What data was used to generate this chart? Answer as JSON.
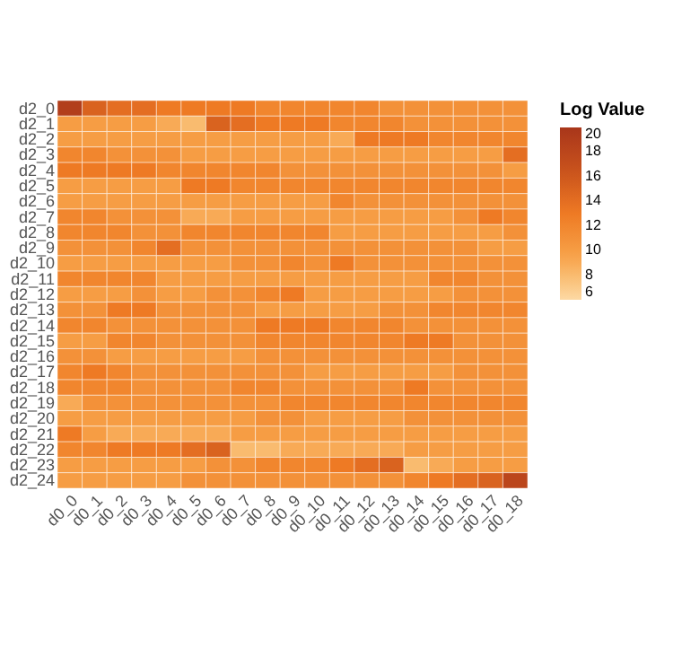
{
  "chart_data": {
    "type": "heatmap",
    "legend_title": "Log Value",
    "clim": [
      6,
      20
    ],
    "cticks": [
      6,
      8,
      10,
      12,
      14,
      16,
      18,
      20
    ],
    "categories": [
      "d0_0",
      "d0_1",
      "d0_2",
      "d0_3",
      "d0_4",
      "d0_5",
      "d0_6",
      "d0_7",
      "d0_8",
      "d0_9",
      "d0_10",
      "d0_11",
      "d0_12",
      "d0_13",
      "d0_14",
      "d0_15",
      "d0_16",
      "d0_17",
      "d0_18"
    ],
    "y_categories": [
      "d2_0",
      "d2_1",
      "d2_2",
      "d2_3",
      "d2_4",
      "d2_5",
      "d2_6",
      "d2_7",
      "d2_8",
      "d2_9",
      "d2_10",
      "d2_11",
      "d2_12",
      "d2_13",
      "d2_14",
      "d2_15",
      "d2_16",
      "d2_17",
      "d2_18",
      "d2_19",
      "d2_20",
      "d2_21",
      "d2_22",
      "d2_23",
      "d2_24"
    ],
    "cells": [
      [
        19,
        15,
        14,
        14,
        13,
        13,
        13,
        13,
        12,
        12,
        12,
        12,
        12,
        11,
        11,
        11,
        11,
        11,
        11
      ],
      [
        10,
        10,
        10,
        10,
        9,
        8,
        15,
        14,
        13,
        13,
        13,
        12,
        12,
        12,
        11,
        11,
        11,
        11,
        11
      ],
      [
        10,
        10,
        10,
        10,
        10,
        10,
        10,
        10,
        10,
        10,
        10,
        9,
        13,
        13,
        13,
        12,
        12,
        12,
        12
      ],
      [
        12,
        12,
        11,
        11,
        11,
        10,
        10,
        10,
        10,
        10,
        10,
        10,
        10,
        10,
        10,
        10,
        10,
        10,
        14
      ],
      [
        13,
        13,
        13,
        13,
        12,
        12,
        12,
        12,
        12,
        11,
        11,
        11,
        11,
        11,
        11,
        11,
        11,
        11,
        10
      ],
      [
        10,
        10,
        10,
        10,
        10,
        13,
        13,
        12,
        12,
        12,
        12,
        12,
        12,
        12,
        12,
        12,
        12,
        12,
        12
      ],
      [
        10,
        10,
        10,
        10,
        10,
        10,
        10,
        10,
        10,
        10,
        10,
        12,
        11,
        11,
        11,
        11,
        11,
        11,
        11
      ],
      [
        12,
        12,
        11,
        11,
        11,
        9,
        9,
        10,
        10,
        10,
        10,
        10,
        10,
        10,
        10,
        10,
        11,
        13,
        12
      ],
      [
        12,
        12,
        12,
        11,
        11,
        12,
        12,
        12,
        12,
        12,
        12,
        10,
        10,
        10,
        10,
        10,
        10,
        10,
        11
      ],
      [
        11,
        11,
        11,
        12,
        14,
        11,
        11,
        11,
        11,
        11,
        11,
        11,
        11,
        11,
        11,
        11,
        11,
        10,
        10
      ],
      [
        10,
        10,
        10,
        10,
        10,
        10,
        10,
        11,
        11,
        12,
        11,
        13,
        11,
        11,
        11,
        11,
        11,
        11,
        11
      ],
      [
        12,
        12,
        12,
        12,
        10,
        10,
        10,
        10,
        10,
        10,
        10,
        10,
        10,
        10,
        10,
        12,
        12,
        11,
        11
      ],
      [
        10,
        10,
        10,
        11,
        10,
        10,
        11,
        11,
        12,
        13,
        10,
        10,
        10,
        10,
        10,
        10,
        11,
        11,
        11
      ],
      [
        11,
        11,
        13,
        13,
        11,
        11,
        11,
        11,
        10,
        10,
        10,
        10,
        10,
        11,
        11,
        12,
        12,
        12,
        12
      ],
      [
        12,
        12,
        11,
        11,
        11,
        11,
        11,
        11,
        13,
        13,
        13,
        12,
        12,
        12,
        11,
        11,
        11,
        11,
        11
      ],
      [
        10,
        10,
        12,
        12,
        11,
        11,
        11,
        11,
        12,
        12,
        12,
        12,
        12,
        12,
        13,
        13,
        11,
        11,
        11
      ],
      [
        11,
        11,
        10,
        10,
        10,
        10,
        10,
        10,
        11,
        11,
        11,
        11,
        11,
        11,
        11,
        11,
        11,
        11,
        11
      ],
      [
        12,
        13,
        12,
        11,
        11,
        11,
        11,
        11,
        11,
        11,
        10,
        10,
        10,
        10,
        10,
        10,
        11,
        11,
        11
      ],
      [
        12,
        12,
        12,
        11,
        11,
        11,
        11,
        12,
        12,
        11,
        11,
        11,
        11,
        11,
        13,
        11,
        11,
        11,
        11
      ],
      [
        9,
        11,
        11,
        11,
        11,
        11,
        11,
        11,
        11,
        12,
        12,
        12,
        12,
        12,
        12,
        12,
        12,
        12,
        12
      ],
      [
        10,
        10,
        10,
        10,
        10,
        10,
        10,
        10,
        11,
        11,
        10,
        10,
        10,
        10,
        11,
        11,
        11,
        11,
        11
      ],
      [
        13,
        10,
        9,
        9,
        9,
        9,
        9,
        10,
        10,
        10,
        10,
        10,
        10,
        10,
        10,
        10,
        10,
        10,
        10
      ],
      [
        12,
        12,
        13,
        13,
        13,
        14,
        15,
        8,
        8,
        9,
        9,
        9,
        9,
        9,
        10,
        10,
        10,
        10,
        10
      ],
      [
        10,
        10,
        10,
        10,
        10,
        10,
        11,
        11,
        12,
        12,
        12,
        13,
        14,
        15,
        8,
        9,
        10,
        10,
        10
      ],
      [
        10,
        10,
        10,
        10,
        10,
        11,
        11,
        11,
        11,
        11,
        11,
        11,
        11,
        11,
        12,
        13,
        14,
        15,
        18
      ]
    ]
  }
}
